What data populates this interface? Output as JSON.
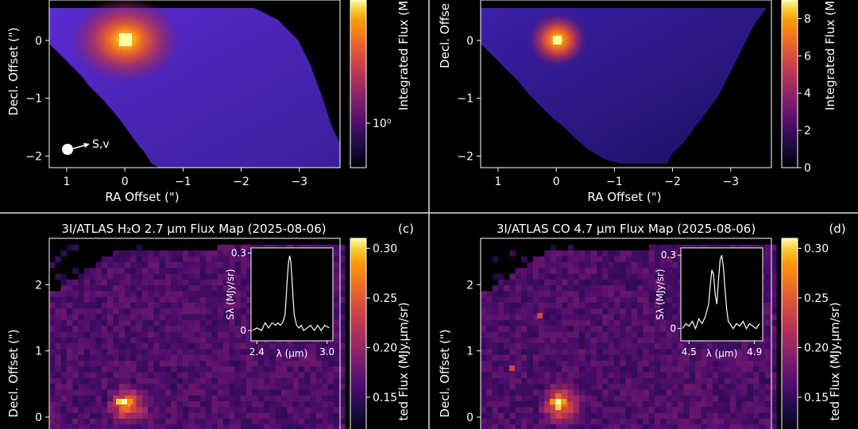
{
  "panels": [
    {
      "id": "a",
      "title": "",
      "panel_label": "",
      "ylabel": "Decl. Offset (\")",
      "xlabel": "RA Offset (\")",
      "cbar_label": "Integrated Flux (M",
      "cbar_scale": "log",
      "cbar_tick_labels": [
        "10⁰"
      ],
      "x_tick_labels": [
        "1",
        "0",
        "−1",
        "−2",
        "−3"
      ],
      "y_tick_labels": [
        "0",
        "−1",
        "−2"
      ],
      "annotation": "S,v"
    },
    {
      "id": "b",
      "title": "",
      "panel_label": "",
      "ylabel": "Decl. Offse",
      "xlabel": "RA Offset (\")",
      "cbar_label": "Integrated Flux (M",
      "cbar_scale": "linear",
      "cbar_tick_labels": [
        "0",
        "2",
        "4",
        "6",
        "8"
      ],
      "x_tick_labels": [
        "1",
        "0",
        "−1",
        "−2",
        "−3"
      ],
      "y_tick_labels": [
        "0",
        "−1",
        "−2"
      ]
    },
    {
      "id": "c",
      "title": "3I/ATLAS H₂O 2.7 μm Flux Map (2025-08-06)",
      "panel_label": "(c)",
      "ylabel": "Decl. Offset (\")",
      "cbar_label": "ted Flux (MJy.μm/sr)",
      "cbar_tick_labels": [
        "0.30",
        "0.25",
        "0.20",
        "0.15"
      ],
      "y_tick_labels": [
        "2",
        "1",
        "0"
      ],
      "inset": {
        "ylabel": "Sλ (MJy/sr)",
        "xlabel": "λ (μm)",
        "x_tick_labels": [
          "2.4",
          "3.0"
        ],
        "y_tick_labels": [
          "0.3",
          "0"
        ]
      }
    },
    {
      "id": "d",
      "title": "3I/ATLAS CO 4.7 μm Flux Map (2025-08-06)",
      "panel_label": "(d)",
      "ylabel": "Decl. Offset (\")",
      "cbar_label": "ted Flux (MJy.μm/sr)",
      "cbar_tick_labels": [
        "0.30",
        "0.25",
        "0.20",
        "0.15"
      ],
      "y_tick_labels": [
        "2",
        "1",
        "0"
      ],
      "inset": {
        "ylabel": "Sλ (MJy/sr)",
        "xlabel": "λ (μm)",
        "x_tick_labels": [
          "4.5",
          "4.9"
        ],
        "y_tick_labels": [
          "0.3",
          "0"
        ]
      }
    }
  ],
  "chart_data": [
    {
      "type": "heatmap",
      "panel": "a",
      "x_tick_values": [
        1,
        0,
        -1,
        -2,
        -3
      ],
      "y_tick_values": [
        0,
        -1,
        -2
      ],
      "xlim": [
        1.3,
        -3.7
      ],
      "ylim": [
        -2.2,
        0.7
      ],
      "peak_offset": [
        0,
        0
      ],
      "colormap": "inferno",
      "colorbar_scale": "log",
      "colorbar_ticks": [
        1
      ],
      "direction_marker_position": [
        1,
        -1.9
      ]
    },
    {
      "type": "heatmap",
      "panel": "b",
      "x_tick_values": [
        1,
        0,
        -1,
        -2,
        -3
      ],
      "y_tick_values": [
        0,
        -1,
        -2
      ],
      "xlim": [
        1.3,
        -3.7
      ],
      "ylim": [
        -2.2,
        0.7
      ],
      "peak_offset": [
        0,
        0
      ],
      "colormap": "inferno",
      "colorbar_scale": "linear",
      "colorbar_ticks": [
        0,
        2,
        4,
        6,
        8
      ],
      "colorbar_range": [
        0,
        9
      ]
    },
    {
      "type": "heatmap",
      "panel": "c",
      "y_tick_values": [
        2,
        1,
        0
      ],
      "ylim": [
        -0.3,
        2.7
      ],
      "xlim": [
        1.3,
        -3.7
      ],
      "peak_offset": [
        0,
        0
      ],
      "colormap": "inferno",
      "colorbar_ticks": [
        0.3,
        0.25,
        0.2,
        0.15
      ],
      "colorbar_range": [
        0.11,
        0.31
      ],
      "inset": {
        "type": "line",
        "xlim": [
          2.35,
          3.05
        ],
        "ylim": [
          -0.04,
          0.32
        ],
        "x": [
          2.36,
          2.4,
          2.44,
          2.47,
          2.5,
          2.53,
          2.56,
          2.58,
          2.6,
          2.62,
          2.64,
          2.65,
          2.66,
          2.67,
          2.68,
          2.69,
          2.7,
          2.71,
          2.72,
          2.74,
          2.76,
          2.78,
          2.8,
          2.83,
          2.86,
          2.89,
          2.92,
          2.95,
          2.98,
          3.02
        ],
        "y": [
          0.0,
          0.01,
          0.0,
          0.03,
          0.01,
          0.03,
          0.02,
          0.03,
          0.02,
          0.03,
          0.06,
          0.12,
          0.2,
          0.26,
          0.29,
          0.27,
          0.2,
          0.12,
          0.06,
          0.02,
          0.01,
          0.02,
          0.0,
          0.01,
          0.02,
          0.0,
          0.02,
          0.0,
          0.02,
          0.01
        ]
      }
    },
    {
      "type": "heatmap",
      "panel": "d",
      "y_tick_values": [
        2,
        1,
        0
      ],
      "ylim": [
        -0.3,
        2.7
      ],
      "xlim": [
        1.3,
        -3.7
      ],
      "peak_offset": [
        0,
        0
      ],
      "colormap": "inferno",
      "colorbar_ticks": [
        0.3,
        0.25,
        0.2,
        0.15
      ],
      "colorbar_range": [
        0.11,
        0.31
      ],
      "inset": {
        "type": "line",
        "xlim": [
          4.45,
          4.95
        ],
        "ylim": [
          -0.05,
          0.33
        ],
        "x": [
          4.46,
          4.48,
          4.5,
          4.52,
          4.54,
          4.56,
          4.58,
          4.6,
          4.62,
          4.63,
          4.64,
          4.65,
          4.66,
          4.67,
          4.68,
          4.69,
          4.7,
          4.71,
          4.72,
          4.73,
          4.74,
          4.75,
          4.77,
          4.79,
          4.81,
          4.83,
          4.85,
          4.87,
          4.89,
          4.91,
          4.93
        ],
        "y": [
          0.0,
          0.02,
          0.01,
          0.03,
          0.0,
          0.04,
          0.02,
          0.05,
          0.1,
          0.18,
          0.24,
          0.22,
          0.14,
          0.1,
          0.2,
          0.28,
          0.3,
          0.25,
          0.16,
          0.08,
          0.03,
          0.02,
          0.0,
          0.02,
          0.01,
          0.03,
          0.0,
          0.02,
          0.01,
          0.0,
          0.02
        ]
      }
    }
  ]
}
